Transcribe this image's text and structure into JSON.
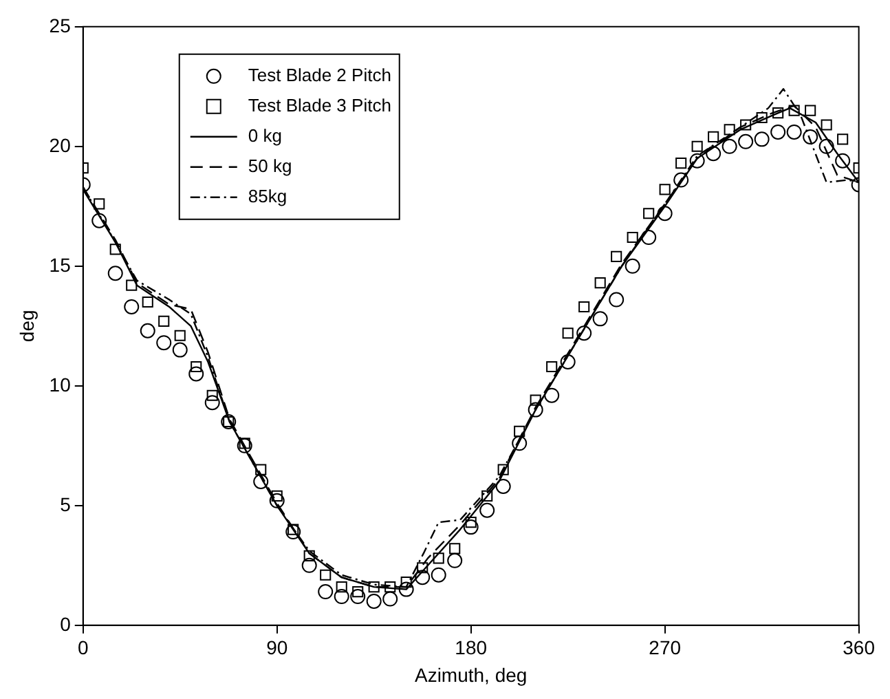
{
  "chart_data": {
    "type": "scatter",
    "xlabel": "Azimuth, deg",
    "ylabel": "deg",
    "xlim": [
      0,
      360
    ],
    "xticks": [
      0,
      90,
      180,
      270,
      360
    ],
    "ylim": [
      0,
      25
    ],
    "yticks": [
      0,
      5,
      10,
      15,
      20,
      25
    ],
    "grid": false,
    "legend": "top left",
    "x": [
      0,
      7.5,
      15,
      22.5,
      30,
      37.5,
      45,
      52.5,
      60,
      67.5,
      75,
      82.5,
      90,
      97.5,
      105,
      112.5,
      120,
      127.5,
      135,
      142.5,
      150,
      157.5,
      165,
      172.5,
      180,
      187.5,
      195,
      202.5,
      210,
      217.5,
      225,
      232.5,
      240,
      247.5,
      255,
      262.5,
      270,
      277.5,
      285,
      292.5,
      300,
      307.5,
      315,
      322.5,
      330,
      337.5,
      345,
      352.5,
      360
    ],
    "series": [
      {
        "name": "Test Blade 2 Pitch",
        "type": "scatter",
        "marker": "circle",
        "color": "#000000",
        "values": [
          18.4,
          16.9,
          14.7,
          13.3,
          12.3,
          11.8,
          11.5,
          10.5,
          9.3,
          8.5,
          7.5,
          6.0,
          5.2,
          3.9,
          2.5,
          1.4,
          1.2,
          1.2,
          1.0,
          1.1,
          1.5,
          2.0,
          2.1,
          2.7,
          4.1,
          4.8,
          5.8,
          7.6,
          9.0,
          9.6,
          11.0,
          12.2,
          12.8,
          13.6,
          15.0,
          16.2,
          17.2,
          18.6,
          19.4,
          19.7,
          20.0,
          20.2,
          20.3,
          20.6,
          20.6,
          20.4,
          20.0,
          19.4,
          18.4
        ]
      },
      {
        "name": "Test Blade 3 Pitch",
        "type": "scatter",
        "marker": "square",
        "color": "#000000",
        "values": [
          19.1,
          17.6,
          15.7,
          14.2,
          13.5,
          12.7,
          12.1,
          10.8,
          9.6,
          8.5,
          7.6,
          6.5,
          5.4,
          4.0,
          2.9,
          2.1,
          1.6,
          1.4,
          1.6,
          1.6,
          1.8,
          2.4,
          2.8,
          3.2,
          4.3,
          5.4,
          6.5,
          8.1,
          9.4,
          10.8,
          12.2,
          13.3,
          14.3,
          15.4,
          16.2,
          17.2,
          18.2,
          19.3,
          20.0,
          20.4,
          20.7,
          20.9,
          21.2,
          21.4,
          21.5,
          21.5,
          20.9,
          20.3,
          19.1
        ]
      },
      {
        "name": "0 kg",
        "type": "line",
        "line_style": "solid",
        "color": "#000000",
        "x": [
          0,
          15,
          25,
          40,
          50,
          58,
          68,
          90,
          105,
          120,
          135,
          150,
          160,
          175,
          193,
          210,
          230,
          250,
          270,
          285,
          305,
          320,
          328,
          340,
          350,
          360
        ],
        "values": [
          18.2,
          16.0,
          14.2,
          13.3,
          12.5,
          11.0,
          8.5,
          5.0,
          3.0,
          2.0,
          1.6,
          1.5,
          2.5,
          4.0,
          6.0,
          9.0,
          12.0,
          15.0,
          17.5,
          19.5,
          20.7,
          21.3,
          21.6,
          21.0,
          19.7,
          18.5
        ]
      },
      {
        "name": "50 kg",
        "type": "line",
        "line_style": "dashed",
        "color": "#000000",
        "x": [
          0,
          15,
          25,
          40,
          50,
          58,
          68,
          90,
          105,
          120,
          135,
          150,
          160,
          175,
          193,
          210,
          230,
          250,
          270,
          285,
          305,
          320,
          330,
          340,
          350,
          360
        ],
        "values": [
          18.3,
          16.1,
          14.3,
          13.4,
          13.2,
          11.4,
          8.6,
          5.1,
          3.0,
          2.0,
          1.6,
          1.6,
          2.8,
          4.2,
          6.1,
          9.1,
          12.1,
          15.1,
          17.6,
          19.5,
          20.8,
          21.4,
          21.7,
          20.8,
          18.8,
          18.5
        ]
      },
      {
        "name": "85kg",
        "type": "line",
        "line_style": "dotted",
        "color": "#000000",
        "x": [
          0,
          15,
          25,
          40,
          50,
          58,
          68,
          90,
          105,
          120,
          135,
          150,
          158,
          165,
          175,
          193,
          210,
          230,
          250,
          270,
          285,
          305,
          318,
          325,
          333,
          345,
          355,
          360
        ],
        "values": [
          18.3,
          16.0,
          14.4,
          13.6,
          13.0,
          11.2,
          8.5,
          5.0,
          3.1,
          2.1,
          1.7,
          1.6,
          3.0,
          4.3,
          4.4,
          6.2,
          9.0,
          12.0,
          15.0,
          17.6,
          19.6,
          20.8,
          21.6,
          22.4,
          21.3,
          18.5,
          18.6,
          18.5
        ]
      }
    ]
  }
}
